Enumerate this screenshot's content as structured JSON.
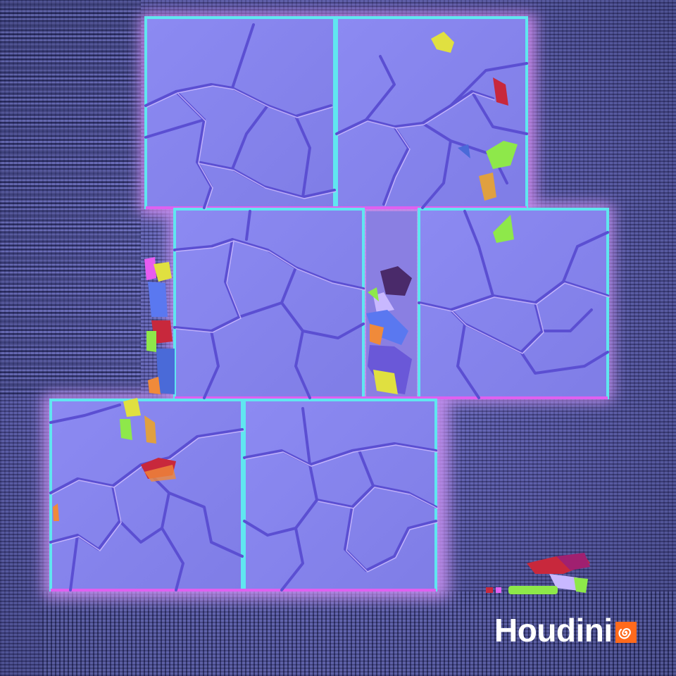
{
  "scene": {
    "subject": "normal-map-texture",
    "brand": {
      "name": "Houdini",
      "accent": "#ff6a1c",
      "text_color": "#ffffff"
    },
    "colors": {
      "normal_base": "#8a86ee",
      "crack_shadow": "#5a4fd0",
      "crack_highlight": "#c9b6ff",
      "edge_cyan": "#57e8f0",
      "edge_magenta": "#e85cf0",
      "debris_red": "#c8283c",
      "debris_green": "#8ee84a",
      "debris_yellow": "#e0e040",
      "debris_orange": "#f08a3a",
      "debris_blue": "#4a6ad8"
    }
  }
}
